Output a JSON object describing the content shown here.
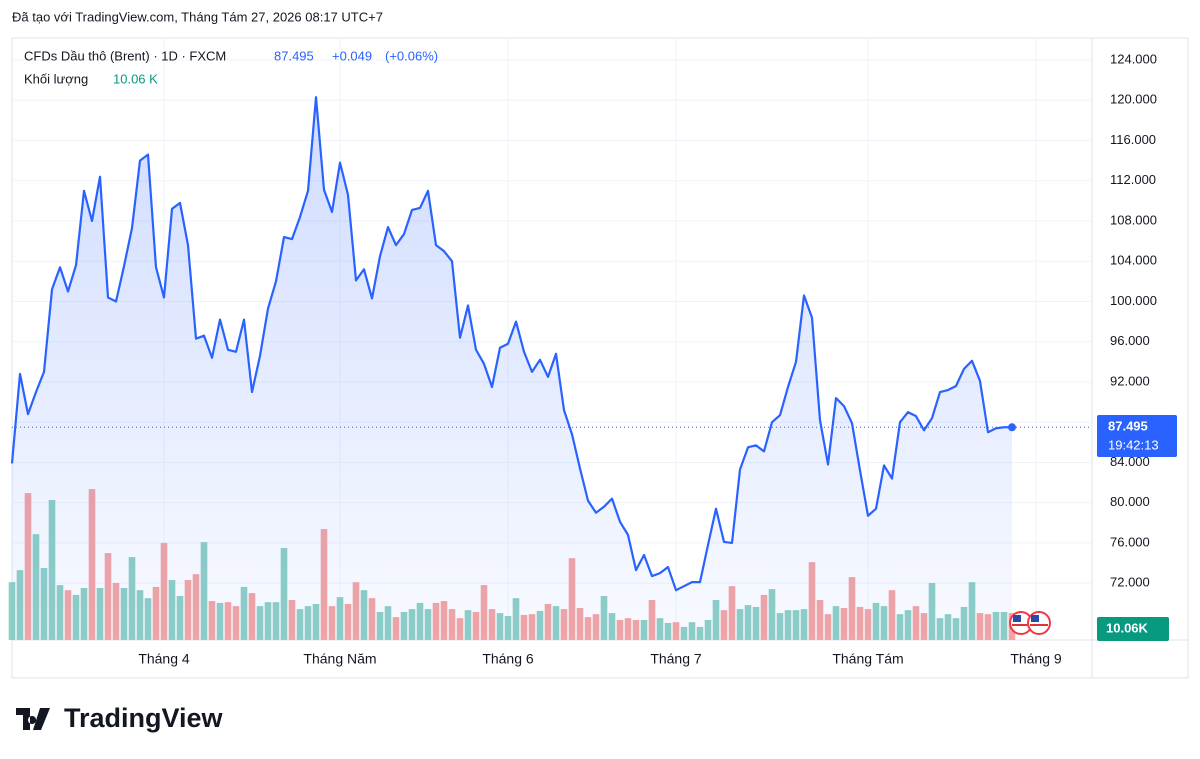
{
  "credit": "Đã tạo với TradingView.com, Tháng Tám 27, 2026 08:17 UTC+7",
  "logo": "TradingView",
  "chart_data": {
    "type": "area",
    "title": "CFDs Dầu thô (Brent) · 1D · FXCM",
    "last_price": "87.495",
    "change": "+0.049",
    "change_pct": "(+0.06%)",
    "volume_title": "Khối lượng",
    "volume_text": "10.06 K",
    "price_badge": "87.495",
    "countdown": "19:42:13",
    "volume_badge": "10.06K",
    "categories": [
      null,
      null,
      null,
      null,
      null,
      null,
      null,
      null,
      null,
      null,
      null,
      null,
      null,
      null,
      null,
      null,
      null,
      null,
      null,
      "Tháng 4",
      null,
      null,
      null,
      null,
      null,
      null,
      null,
      null,
      null,
      null,
      null,
      null,
      null,
      null,
      null,
      null,
      null,
      null,
      null,
      null,
      null,
      "Tháng Năm",
      null,
      null,
      null,
      null,
      null,
      null,
      null,
      null,
      null,
      null,
      null,
      null,
      null,
      null,
      null,
      null,
      null,
      null,
      null,
      null,
      "Tháng 6",
      null,
      null,
      null,
      null,
      null,
      null,
      null,
      null,
      null,
      null,
      null,
      null,
      null,
      null,
      null,
      null,
      null,
      null,
      null,
      null,
      "Tháng 7",
      null,
      null,
      null,
      null,
      null,
      null,
      null,
      null,
      null,
      null,
      null,
      null,
      null,
      null,
      null,
      null,
      null,
      null,
      null,
      null,
      null,
      null,
      null,
      "Tháng Tám",
      null,
      null,
      null,
      null,
      null,
      null,
      null,
      null,
      null,
      null,
      null,
      null,
      null,
      null,
      null,
      null,
      null,
      null,
      null,
      null,
      "Tháng 9"
    ],
    "series": [
      {
        "name": "Brent",
        "color": "#2962ff",
        "values": [
          83.9,
          92.8,
          88.8,
          91,
          93,
          101.2,
          103.4,
          101,
          103.6,
          111,
          108,
          112.4,
          100.4,
          100,
          103.5,
          107.3,
          114,
          114.6,
          103.4,
          100.4,
          109.2,
          109.8,
          105.6,
          96.3,
          96.6,
          94.4,
          98.2,
          95.2,
          95,
          98.2,
          91,
          94.6,
          99.3,
          102,
          106.4,
          106.2,
          108.4,
          111,
          120.3,
          111.1,
          108.9,
          113.8,
          110.6,
          102.1,
          103.2,
          100.3,
          104.5,
          107.4,
          105.6,
          106.7,
          109.1,
          109.3,
          111,
          105.6,
          105,
          104,
          96.4,
          99.6,
          95.2,
          93.8,
          91.5,
          95.4,
          95.8,
          98,
          95,
          93,
          94.2,
          92.5,
          94.8,
          89.2,
          86.8,
          83.4,
          80.2,
          79,
          79.6,
          80.4,
          78.1,
          76.8,
          73.3,
          74.8,
          72.7,
          73,
          73.6,
          71.3,
          71.7,
          72.1,
          72.1,
          75.8,
          79.4,
          76.1,
          76,
          83.3,
          85.5,
          85.7,
          85.1,
          88,
          88.7,
          91.5,
          94,
          100.6,
          98.4,
          88.2,
          83.8,
          90.4,
          89.6,
          87.9,
          83.2,
          78.7,
          79.4,
          83.7,
          82.4,
          88,
          89,
          88.6,
          87.2,
          88.4,
          91,
          91.2,
          91.6,
          93.3,
          94.1,
          92.1,
          87,
          87.4,
          87.5,
          87.495,
          null,
          null,
          null
        ]
      },
      {
        "name": "Khối lượng",
        "axis": "y2",
        "up_color": "#8fd0c6",
        "down_color": "#f5a6a4",
        "values": [
          21.7,
          26.2,
          55.1,
          39.7,
          27.0,
          52.5,
          20.6,
          18.7,
          16.9,
          19.5,
          56.6,
          19.5,
          32.6,
          21.4,
          19.5,
          31.1,
          18.7,
          15.7,
          19.9,
          36.4,
          22.5,
          16.5,
          22.5,
          24.7,
          36.7,
          14.6,
          13.9,
          14.2,
          12.7,
          19.9,
          17.6,
          12.7,
          14.2,
          14.2,
          34.5,
          15.0,
          11.6,
          12.7,
          13.5,
          41.6,
          12.7,
          16.1,
          13.5,
          21.7,
          18.7,
          15.7,
          10.5,
          12.7,
          8.6,
          10.5,
          11.6,
          13.9,
          11.6,
          13.9,
          14.6,
          11.6,
          8.2,
          11.2,
          10.5,
          20.6,
          11.6,
          10.1,
          9.0,
          15.7,
          9.4,
          9.7,
          10.9,
          13.5,
          12.7,
          11.6,
          30.7,
          12.0,
          8.6,
          9.7,
          16.5,
          10.1,
          7.5,
          8.2,
          7.5,
          7.5,
          15.0,
          8.2,
          6.4,
          6.7,
          4.9,
          6.7,
          4.9,
          7.5,
          15.0,
          11.2,
          20.2,
          11.6,
          13.1,
          12.4,
          16.9,
          19.1,
          10.1,
          11.2,
          11.2,
          11.6,
          29.2,
          15.0,
          9.7,
          12.7,
          12.0,
          23.6,
          12.4,
          11.6,
          13.9,
          12.7,
          18.7,
          9.7,
          11.2,
          12.7,
          10.1,
          21.4,
          8.2,
          9.7,
          8.2,
          12.4,
          21.7,
          10.1,
          9.7,
          10.5,
          10.5,
          10.06,
          null,
          null,
          null
        ]
      }
    ],
    "ylim": [
      66.35,
      126.19
    ],
    "yticks": [
      {
        "value": 72,
        "label": "72.000"
      },
      {
        "value": 76,
        "label": "76.000"
      },
      {
        "value": 80,
        "label": "80.000"
      },
      {
        "value": 84,
        "label": "84.000"
      },
      {
        "value": 88,
        "label": "88.000"
      },
      {
        "value": 92,
        "label": "92.000"
      },
      {
        "value": 96,
        "label": "96.000"
      },
      {
        "value": 100,
        "label": "100.000"
      },
      {
        "value": 104,
        "label": "104.000"
      },
      {
        "value": 108,
        "label": "108.000"
      },
      {
        "value": 112,
        "label": "112.000"
      },
      {
        "value": 116,
        "label": "116.000"
      },
      {
        "value": 120,
        "label": "120.000"
      },
      {
        "value": 124,
        "label": "124.000"
      }
    ],
    "y2lim": [
      0,
      60
    ],
    "grid": true
  }
}
